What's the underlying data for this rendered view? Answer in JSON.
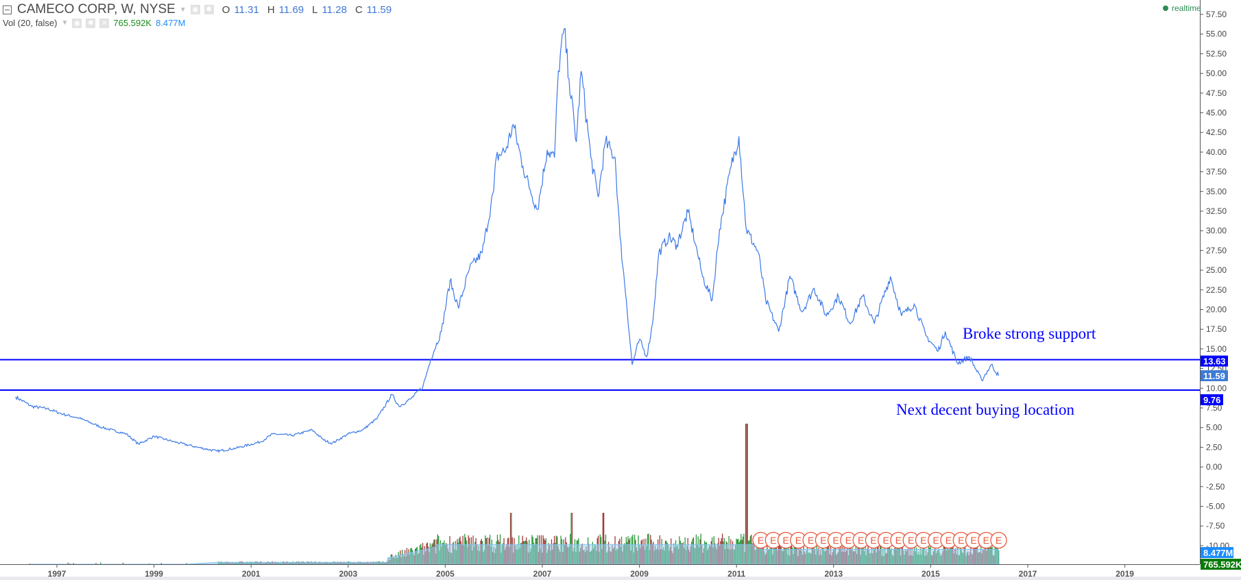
{
  "header": {
    "symbol": "CAMECO CORP, W, NYSE",
    "ohlc": {
      "o_label": "O",
      "o": "11.31",
      "h_label": "H",
      "h": "11.69",
      "l_label": "L",
      "l": "11.28",
      "c_label": "C",
      "c": "11.59"
    },
    "volume_study": "Vol (20, false)",
    "volume_value": "765.592K",
    "volume_ma": "8.477M",
    "realtime": "realtime"
  },
  "annotations": {
    "upper": "Broke strong support",
    "lower": "Next decent buying location"
  },
  "colors": {
    "price_line": "#3b78e7",
    "hline": "#0000ff",
    "vol_up": "#2a9a3a",
    "vol_down": "#a33a3a",
    "vol_ma": "#9fd3f5",
    "earnings": "#e8563a"
  },
  "chart_data": {
    "type": "line",
    "title": "CAMECO CORP, W, NYSE",
    "xlabel": "",
    "ylabel": "",
    "xlim": [
      1995.9,
      2020.4
    ],
    "ylim": [
      -11.2,
      59.3
    ],
    "x_ticks": [
      "1997",
      "1999",
      "2001",
      "2003",
      "2005",
      "2007",
      "2009",
      "2011",
      "2013",
      "2015",
      "2017",
      "2019"
    ],
    "y_ticks": [
      "57.50",
      "55.00",
      "52.50",
      "50.00",
      "47.50",
      "45.00",
      "42.50",
      "40.00",
      "37.50",
      "35.00",
      "32.50",
      "30.00",
      "27.50",
      "25.00",
      "22.50",
      "20.00",
      "17.50",
      "15.00",
      "12.50",
      "10.00",
      "7.50",
      "5.00",
      "2.50",
      "0.00",
      "-2.50",
      "-5.00",
      "-7.50",
      "-10.00"
    ],
    "price_series": [
      [
        1996.15,
        8.9
      ],
      [
        1996.48,
        7.7
      ],
      [
        1996.8,
        7.4
      ],
      [
        1997.13,
        6.7
      ],
      [
        1997.46,
        6.2
      ],
      [
        1997.94,
        5.0
      ],
      [
        1998.43,
        4.2
      ],
      [
        1998.68,
        2.9
      ],
      [
        1999.0,
        3.9
      ],
      [
        1999.41,
        3.2
      ],
      [
        1999.9,
        2.5
      ],
      [
        2000.3,
        2.0
      ],
      [
        2000.7,
        2.4
      ],
      [
        2001.2,
        3.2
      ],
      [
        2001.45,
        4.2
      ],
      [
        2001.85,
        4.0
      ],
      [
        2002.26,
        4.7
      ],
      [
        2002.5,
        3.4
      ],
      [
        2002.67,
        3.0
      ],
      [
        2003.0,
        4.2
      ],
      [
        2003.3,
        4.7
      ],
      [
        2003.6,
        6.2
      ],
      [
        2003.9,
        9.2
      ],
      [
        2004.05,
        7.7
      ],
      [
        2004.3,
        8.7
      ],
      [
        2004.54,
        10.2
      ],
      [
        2004.7,
        13.7
      ],
      [
        2004.92,
        17.2
      ],
      [
        2005.1,
        23.7
      ],
      [
        2005.27,
        20.2
      ],
      [
        2005.5,
        25.2
      ],
      [
        2005.76,
        27.2
      ],
      [
        2006.0,
        35.2
      ],
      [
        2006.05,
        39.3
      ],
      [
        2006.25,
        40.3
      ],
      [
        2006.4,
        43.5
      ],
      [
        2006.6,
        38.2
      ],
      [
        2006.75,
        35.2
      ],
      [
        2006.9,
        32.7
      ],
      [
        2007.1,
        40.3
      ],
      [
        2007.25,
        39.3
      ],
      [
        2007.33,
        50.3
      ],
      [
        2007.45,
        55.7
      ],
      [
        2007.55,
        49.3
      ],
      [
        2007.7,
        41.3
      ],
      [
        2007.8,
        50.3
      ],
      [
        2008.0,
        39.3
      ],
      [
        2008.15,
        34.3
      ],
      [
        2008.3,
        41.3
      ],
      [
        2008.5,
        39.3
      ],
      [
        2008.6,
        29.2
      ],
      [
        2008.73,
        21.2
      ],
      [
        2008.85,
        13.0
      ],
      [
        2009.0,
        16.2
      ],
      [
        2009.15,
        14.0
      ],
      [
        2009.27,
        18.2
      ],
      [
        2009.4,
        27.2
      ],
      [
        2009.6,
        29.2
      ],
      [
        2009.77,
        28.2
      ],
      [
        2010.0,
        32.4
      ],
      [
        2010.16,
        28.2
      ],
      [
        2010.3,
        24.2
      ],
      [
        2010.5,
        21.2
      ],
      [
        2010.65,
        30.2
      ],
      [
        2010.89,
        38.2
      ],
      [
        2011.05,
        42.0
      ],
      [
        2011.2,
        30.2
      ],
      [
        2011.45,
        27.2
      ],
      [
        2011.6,
        21.2
      ],
      [
        2011.87,
        17.2
      ],
      [
        2012.1,
        24.2
      ],
      [
        2012.35,
        19.7
      ],
      [
        2012.6,
        22.7
      ],
      [
        2012.85,
        19.2
      ],
      [
        2013.1,
        21.7
      ],
      [
        2013.34,
        18.2
      ],
      [
        2013.6,
        21.7
      ],
      [
        2013.84,
        18.2
      ],
      [
        2014.17,
        24.2
      ],
      [
        2014.4,
        19.2
      ],
      [
        2014.66,
        20.7
      ],
      [
        2014.9,
        16.7
      ],
      [
        2015.15,
        14.7
      ],
      [
        2015.3,
        17.2
      ],
      [
        2015.55,
        13.2
      ],
      [
        2015.8,
        14.0
      ],
      [
        2016.05,
        11.0
      ],
      [
        2016.25,
        13.0
      ],
      [
        2016.4,
        11.59
      ]
    ],
    "horizontal_lines": [
      {
        "value": 13.63,
        "label": "13.63"
      },
      {
        "value": 9.76,
        "label": "9.76"
      }
    ],
    "last_price": {
      "value": 11.59,
      "label": "11.59"
    },
    "volume_labels": {
      "ma": "8.477M",
      "last": "765.592K"
    },
    "volume_spikes": [
      [
        2006.35,
        "high"
      ],
      [
        2007.6,
        "high"
      ],
      [
        2008.25,
        "high"
      ],
      [
        2011.2,
        "extreme"
      ]
    ],
    "earnings_marker": "E",
    "earnings_count": 20,
    "earnings_range": [
      2011.5,
      2016.4
    ]
  }
}
